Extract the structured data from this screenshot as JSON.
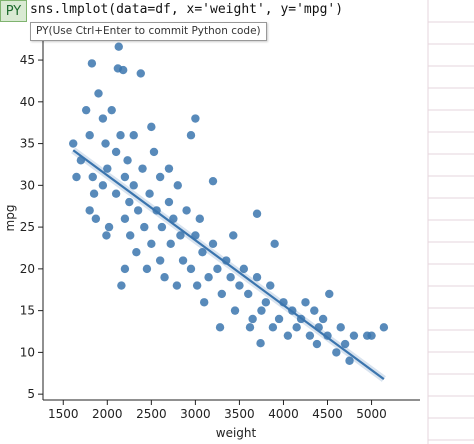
{
  "badge": "PY",
  "code": "sns.lmplot(data=df, x='weight', y='mpg')",
  "tooltip": "PY(Use Ctrl+Enter to commit Python code)",
  "chart_data": {
    "type": "scatter",
    "xlabel": "weight",
    "ylabel": "mpg",
    "color": "#3b75ae",
    "xlim": [
      1270,
      5550
    ],
    "ylim": [
      4.3,
      48
    ],
    "xticks": [
      1500,
      2000,
      2500,
      3000,
      3500,
      4000,
      4500,
      5000
    ],
    "yticks": [
      5,
      10,
      15,
      20,
      25,
      30,
      35,
      40,
      45
    ],
    "x": [
      1613,
      1650,
      1700,
      1760,
      1800,
      1800,
      1825,
      1835,
      1850,
      1870,
      1900,
      1950,
      1950,
      1980,
      2000,
      2020,
      2050,
      2100,
      2100,
      2120,
      2130,
      2150,
      2160,
      2180,
      2200,
      2200,
      2230,
      2250,
      2260,
      2300,
      2300,
      2330,
      2350,
      2380,
      2400,
      2420,
      2450,
      2480,
      2500,
      2500,
      2530,
      2560,
      2600,
      2600,
      2620,
      2650,
      2700,
      2700,
      2720,
      2750,
      2790,
      2800,
      2830,
      2860,
      2900,
      2950,
      2950,
      3000,
      3000,
      3020,
      3050,
      3080,
      3100,
      3150,
      3200,
      3200,
      3250,
      3280,
      3300,
      3350,
      3400,
      3430,
      3450,
      3500,
      3550,
      3600,
      3620,
      3650,
      3700,
      3700,
      3750,
      3800,
      3850,
      3880,
      3900,
      3950,
      4000,
      4050,
      4100,
      4150,
      4200,
      4250,
      4300,
      4350,
      4380,
      4400,
      4450,
      4500,
      4520,
      4600,
      4650,
      4700,
      4750,
      4800,
      4950,
      5000,
      5140,
      3740,
      2200,
      1990
    ],
    "y": [
      35,
      31,
      33,
      39,
      36,
      27,
      44.6,
      31,
      29,
      26,
      41,
      38,
      30,
      35,
      32,
      25,
      39,
      34,
      29,
      44,
      46.6,
      36,
      18,
      43.8,
      31,
      26,
      33,
      28,
      24,
      36,
      30,
      22,
      27,
      43.4,
      32,
      25,
      20,
      29,
      37,
      23,
      34,
      27,
      31,
      21,
      25,
      19,
      28,
      32,
      23,
      26,
      18,
      30,
      24,
      21,
      27,
      36,
      20,
      38,
      24,
      18,
      26,
      22,
      16,
      19,
      30.5,
      23,
      20,
      13,
      17,
      21,
      19,
      24,
      15,
      18,
      20,
      17,
      13,
      14,
      26.6,
      19,
      15,
      16,
      18,
      13,
      23,
      14,
      16,
      12,
      15,
      13,
      14,
      16,
      12,
      15,
      11,
      13,
      14,
      12,
      17,
      10,
      13,
      11,
      9,
      12,
      12,
      12,
      13,
      11.1,
      20,
      24
    ],
    "fit": {
      "x": [
        1613,
        5140
      ],
      "y": [
        34.2,
        6.8
      ]
    }
  }
}
